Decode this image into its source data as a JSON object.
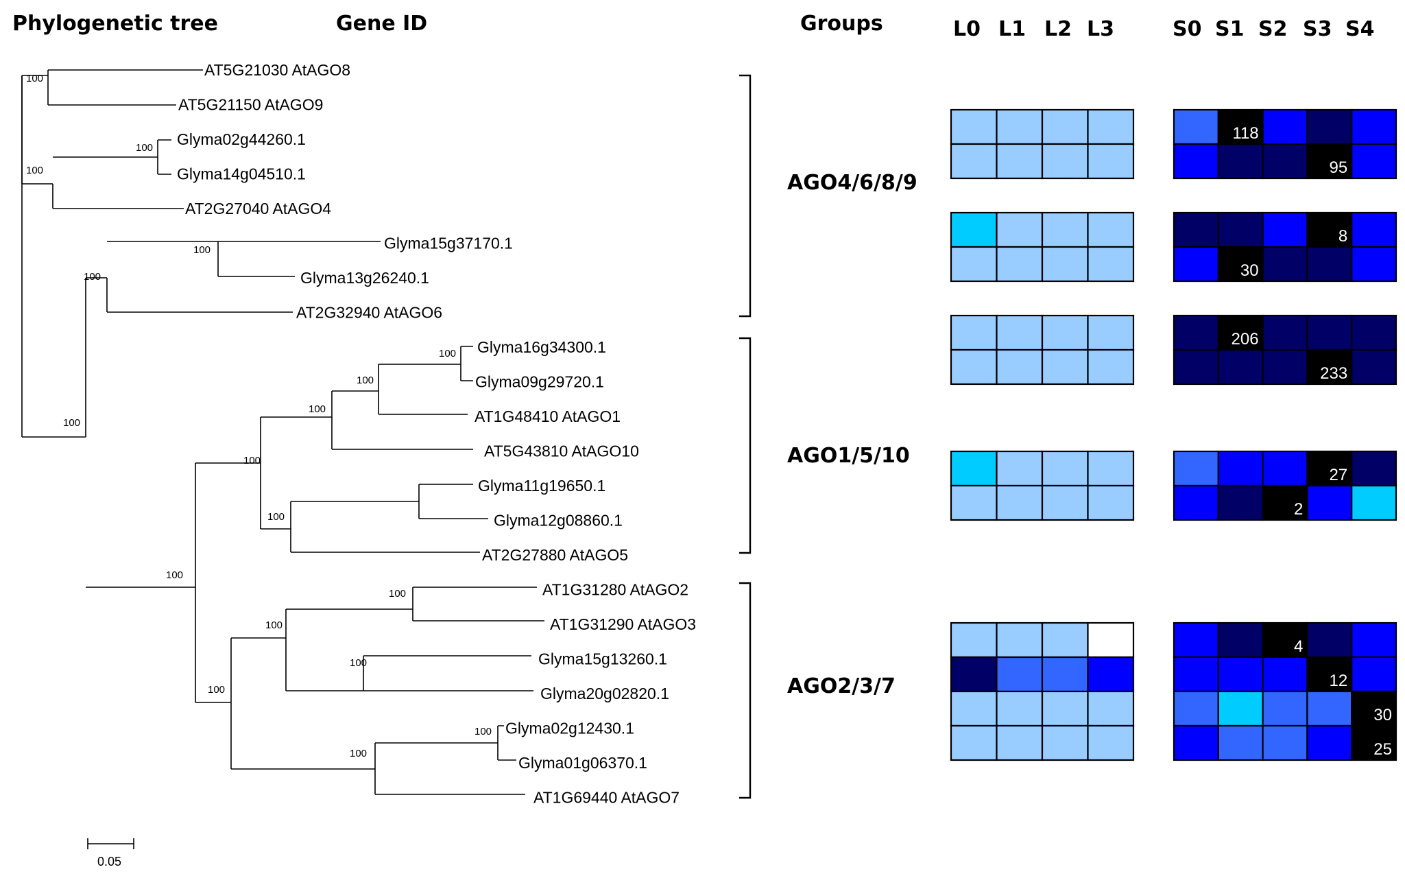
{
  "headers": {
    "tree": "Phylogenetic tree",
    "gene_id": "Gene ID",
    "groups": "Groups",
    "leaf_cols": [
      "L0",
      "L1",
      "L2",
      "L3"
    ],
    "seed_cols": [
      "S0",
      "S1",
      "S2",
      "S3",
      "S4"
    ]
  },
  "scale_bar": "0.05",
  "bootstrap_label": "100",
  "genes": [
    "AT5G21030 AtAGO8",
    "AT5G21150 AtAGO9",
    "Glyma02g44260.1",
    "Glyma14g04510.1",
    "AT2G27040 AtAGO4",
    "Glyma15g37170.1",
    "Glyma13g26240.1",
    "AT2G32940 AtAGO6",
    "Glyma16g34300.1",
    "Glyma09g29720.1",
    "AT1G48410 AtAGO1",
    "AT5G43810 AtAGO10",
    "Glyma11g19650.1",
    "Glyma12g08860.1",
    "AT2G27880 AtAGO5",
    "AT1G31280 AtAGO2",
    "AT1G31290 AtAGO3",
    "Glyma15g13260.1",
    "Glyma20g02820.1",
    "Glyma02g12430.1",
    "Glyma01g06370.1",
    "AT1G69440 AtAGO7"
  ],
  "groups": [
    "AGO4/6/8/9",
    "AGO1/5/10",
    "AGO2/3/7"
  ],
  "colors": {
    "light": "#99ccff",
    "cyan": "#00ccff",
    "medium": "#3366ff",
    "bright": "#0000ff",
    "dark": "#000066",
    "black": "#000000",
    "white": "#ffffff"
  },
  "heatmap_blocks": [
    {
      "group": "AGO4/6/8/9",
      "leaf": [
        [
          "light",
          "light",
          "light",
          "light"
        ],
        [
          "light",
          "light",
          "light",
          "light"
        ]
      ],
      "seed": [
        [
          "medium",
          "black",
          "bright",
          "dark",
          "bright"
        ],
        [
          "bright",
          "dark",
          "dark",
          "black",
          "bright"
        ]
      ],
      "numbers": [
        {
          "row": 0,
          "col": 1,
          "text": "118"
        },
        {
          "row": 1,
          "col": 3,
          "text": "95"
        }
      ]
    },
    {
      "group": "AGO4/6/8/9",
      "leaf": [
        [
          "cyan",
          "light",
          "light",
          "light"
        ],
        [
          "light",
          "light",
          "light",
          "light"
        ]
      ],
      "seed": [
        [
          "dark",
          "dark",
          "bright",
          "black",
          "bright"
        ],
        [
          "bright",
          "black",
          "dark",
          "dark",
          "bright"
        ]
      ],
      "numbers": [
        {
          "row": 0,
          "col": 3,
          "text": "8"
        },
        {
          "row": 1,
          "col": 1,
          "text": "30"
        }
      ]
    },
    {
      "group": "AGO1/5/10",
      "leaf": [
        [
          "light",
          "light",
          "light",
          "light"
        ],
        [
          "light",
          "light",
          "light",
          "light"
        ]
      ],
      "seed": [
        [
          "dark",
          "black",
          "dark",
          "dark",
          "dark"
        ],
        [
          "dark",
          "dark",
          "dark",
          "black",
          "dark"
        ]
      ],
      "numbers": [
        {
          "row": 0,
          "col": 1,
          "text": "206"
        },
        {
          "row": 1,
          "col": 3,
          "text": "233"
        }
      ]
    },
    {
      "group": "AGO1/5/10",
      "leaf": [
        [
          "cyan",
          "light",
          "light",
          "light"
        ],
        [
          "light",
          "light",
          "light",
          "light"
        ]
      ],
      "seed": [
        [
          "medium",
          "bright",
          "bright",
          "black",
          "dark"
        ],
        [
          "bright",
          "dark",
          "black",
          "bright",
          "cyan"
        ]
      ],
      "numbers": [
        {
          "row": 0,
          "col": 3,
          "text": "27"
        },
        {
          "row": 1,
          "col": 2,
          "text": "2"
        }
      ]
    },
    {
      "group": "AGO2/3/7",
      "leaf": [
        [
          "light",
          "light",
          "light",
          "white"
        ],
        [
          "dark",
          "medium",
          "medium",
          "bright"
        ],
        [
          "light",
          "light",
          "light",
          "light"
        ],
        [
          "light",
          "light",
          "light",
          "light"
        ]
      ],
      "seed": [
        [
          "bright",
          "dark",
          "black",
          "dark",
          "bright"
        ],
        [
          "bright",
          "bright",
          "bright",
          "black",
          "bright"
        ],
        [
          "medium",
          "cyan",
          "medium",
          "medium",
          "black"
        ],
        [
          "bright",
          "medium",
          "medium",
          "bright",
          "black"
        ]
      ],
      "numbers": [
        {
          "row": 0,
          "col": 2,
          "text": "4"
        },
        {
          "row": 1,
          "col": 3,
          "text": "12"
        },
        {
          "row": 2,
          "col": 4,
          "text": "30"
        },
        {
          "row": 3,
          "col": 4,
          "text": "25"
        }
      ]
    }
  ]
}
